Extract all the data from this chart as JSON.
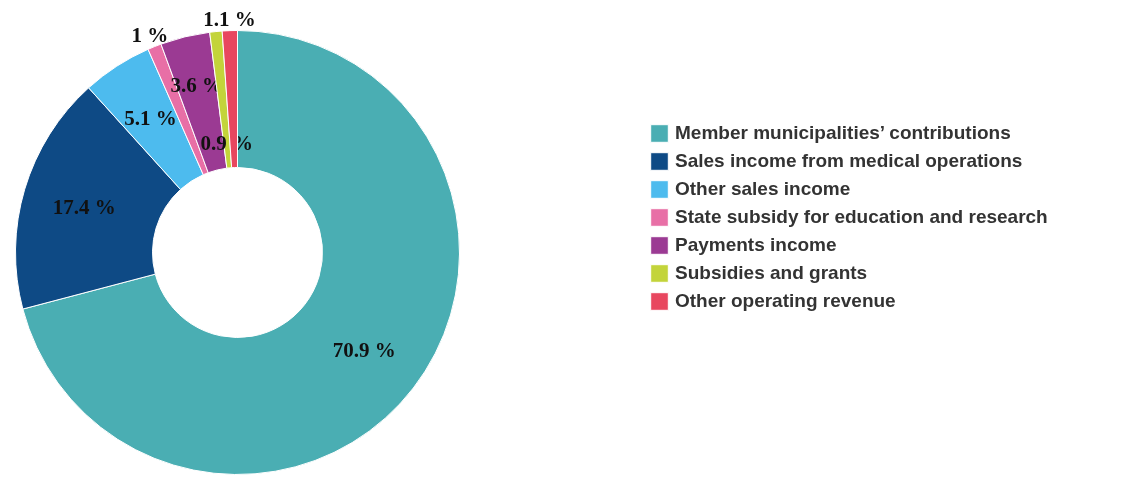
{
  "chart_data": {
    "type": "donut",
    "categories": [
      "Member municipalities’ contributions",
      "Sales income from medical operations",
      "Other sales income",
      "State subsidy for education and research",
      "Payments income",
      "Subsidies and grants",
      "Other operating revenue"
    ],
    "values": [
      70.9,
      17.4,
      5.1,
      1,
      3.6,
      0.9,
      1.1
    ],
    "colors": [
      "#4aaeb3",
      "#0e4a85",
      "#4dbbee",
      "#e86fa6",
      "#9b3a93",
      "#c3d43a",
      "#e8475f"
    ],
    "value_labels": [
      "70.9 %",
      "17.4 %",
      "5.1 %",
      "1 %",
      "3.6 %",
      "0.9 %",
      "1.1 %"
    ],
    "legend": "right"
  }
}
